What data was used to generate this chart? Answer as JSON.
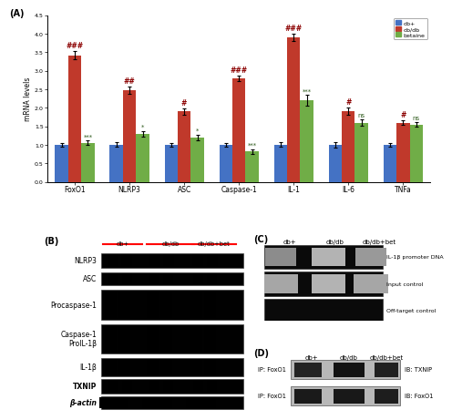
{
  "panel_A": {
    "categories": [
      "FoxO1",
      "NLRP3",
      "ASC",
      "Caspase-1",
      "IL-1",
      "IL-6",
      "TNFa"
    ],
    "db_plus": [
      1.0,
      1.0,
      1.0,
      1.0,
      1.0,
      1.0,
      1.0
    ],
    "db_db": [
      3.42,
      2.48,
      1.9,
      2.8,
      3.9,
      1.9,
      1.6
    ],
    "betaine": [
      1.05,
      1.3,
      1.2,
      0.82,
      2.2,
      1.6,
      1.55
    ],
    "db_plus_err": [
      0.05,
      0.06,
      0.05,
      0.05,
      0.06,
      0.07,
      0.05
    ],
    "db_db_err": [
      0.12,
      0.1,
      0.08,
      0.08,
      0.09,
      0.1,
      0.07
    ],
    "betaine_err": [
      0.06,
      0.07,
      0.07,
      0.06,
      0.14,
      0.08,
      0.06
    ],
    "color_db_plus": "#4472C4",
    "color_db_db": "#C0392B",
    "color_betaine": "#70AD47",
    "ylabel": "mRNA levels",
    "ylim": [
      0.0,
      4.5
    ],
    "yticks": [
      0.0,
      0.5,
      1.0,
      1.5,
      2.0,
      2.5,
      3.0,
      3.5,
      4.0,
      4.5
    ],
    "annotations_db_db": [
      "###",
      "##",
      "#",
      "###",
      "###",
      "#",
      "#"
    ],
    "annotations_betaine": [
      "***",
      "*",
      "*",
      "***",
      "***",
      "ns",
      "ns"
    ],
    "legend_labels": [
      "db+",
      "db/db",
      "betaine"
    ]
  },
  "panel_B": {
    "title": "(B)",
    "groups": [
      "db+",
      "db/db",
      "db/db+bet"
    ],
    "proteins": [
      "NLRP3",
      "ASC",
      "Procaspase-1",
      "Caspase-1\nProIL-1β",
      "IL-1β",
      "TXNIP",
      "β-actin"
    ]
  },
  "panel_C": {
    "title": "(C)",
    "groups": [
      "db+",
      "db/db",
      "db/db+bet"
    ],
    "bands": [
      "IL-1β promoter DNA",
      "Input control",
      "Off-target control"
    ]
  },
  "panel_D": {
    "title": "(D)",
    "groups": [
      "db+",
      "db/db",
      "db/db+bet"
    ],
    "row_labels_left": [
      "IP: FoxO1",
      "IP: FoxO1"
    ],
    "row_labels_right": [
      "IB: TXNIP",
      "IB: FoxO1"
    ]
  }
}
